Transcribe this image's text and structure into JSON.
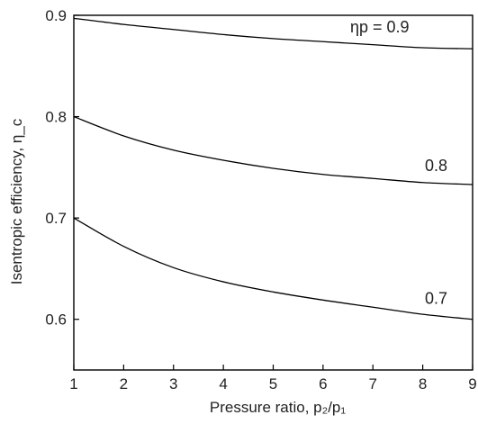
{
  "chart_data": {
    "type": "line",
    "title": "",
    "xlabel": "Pressure ratio, p₂/p₁",
    "ylabel": "Isentropic efficiency, η_c",
    "xlim": [
      1,
      9
    ],
    "ylim": [
      0.55,
      0.9
    ],
    "xticks": [
      1,
      2,
      3,
      4,
      5,
      6,
      7,
      8,
      9
    ],
    "yticks": [
      0.6,
      0.7,
      0.8,
      0.9
    ],
    "xtick_labels": [
      "1",
      "2",
      "3",
      "4",
      "5",
      "6",
      "7",
      "8",
      "9"
    ],
    "ytick_labels": [
      "0.6",
      "0.7",
      "0.8",
      "0.9"
    ],
    "grid": false,
    "legend": "none",
    "series": [
      {
        "name": "0.9",
        "label_text": "ηp = 0.9",
        "x": [
          1,
          2,
          3,
          4,
          5,
          6,
          7,
          8,
          9
        ],
        "values": [
          0.897,
          0.891,
          0.886,
          0.881,
          0.877,
          0.874,
          0.871,
          0.868,
          0.867
        ]
      },
      {
        "name": "0.8",
        "label_text": "0.8",
        "x": [
          1,
          2,
          3,
          4,
          5,
          6,
          7,
          8,
          9
        ],
        "values": [
          0.8,
          0.781,
          0.767,
          0.757,
          0.749,
          0.743,
          0.739,
          0.735,
          0.733
        ]
      },
      {
        "name": "0.7",
        "label_text": "0.7",
        "x": [
          1,
          2,
          3,
          4,
          5,
          6,
          7,
          8,
          9
        ],
        "values": [
          0.7,
          0.672,
          0.651,
          0.637,
          0.627,
          0.619,
          0.612,
          0.605,
          0.6
        ]
      }
    ]
  }
}
